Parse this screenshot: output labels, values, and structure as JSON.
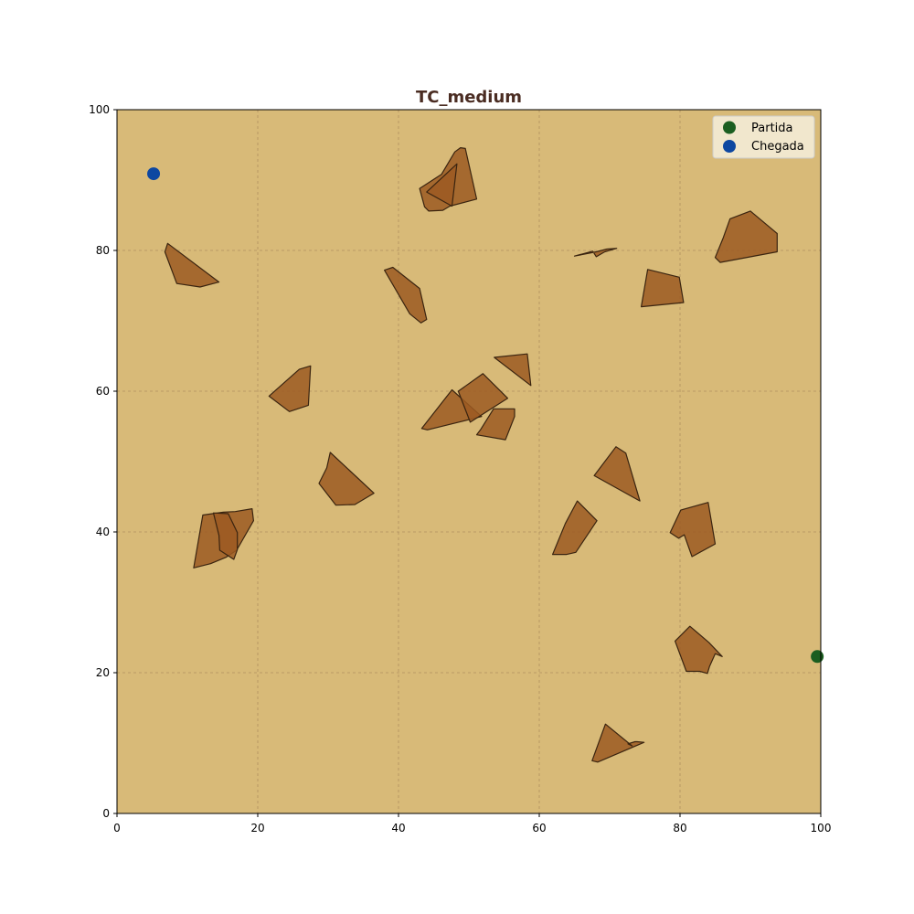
{
  "chart_data": {
    "type": "scatter",
    "title": "TC_medium",
    "xlabel": "",
    "ylabel": "",
    "xlim": [
      0,
      100
    ],
    "ylim": [
      0,
      100
    ],
    "xticks": [
      "0",
      "20",
      "40",
      "60",
      "80",
      "100"
    ],
    "yticks": [
      "0",
      "20",
      "40",
      "60",
      "80",
      "100"
    ],
    "grid": true,
    "legend_position": "top-right",
    "colors": {
      "background": "#d8ba78",
      "obstacle_fill": "#9c5a22",
      "obstacle_stroke": "#3a2410",
      "grid": "#b09060",
      "title": "#4a2c22"
    },
    "series": [
      {
        "name": "Partida",
        "color": "#1b5e20",
        "points": [
          [
            99.5,
            22.3
          ]
        ]
      },
      {
        "name": "Chegada",
        "color": "#0d47a1",
        "points": [
          [
            5.2,
            90.9
          ]
        ]
      }
    ],
    "obstacles": [
      [
        [
          7.2,
          81.0
        ],
        [
          6.8,
          79.8
        ],
        [
          8.5,
          75.3
        ],
        [
          11.8,
          74.8
        ],
        [
          14.5,
          75.5
        ]
      ],
      [
        [
          38.0,
          77.2
        ],
        [
          39.2,
          77.6
        ],
        [
          43.0,
          74.6
        ],
        [
          44.0,
          70.2
        ],
        [
          43.2,
          69.7
        ],
        [
          41.6,
          71.0
        ]
      ],
      [
        [
          43.0,
          88.8
        ],
        [
          46.1,
          90.8
        ],
        [
          48.0,
          94.0
        ],
        [
          48.8,
          94.6
        ],
        [
          49.5,
          94.5
        ],
        [
          51.1,
          87.3
        ],
        [
          47.3,
          86.3
        ],
        [
          46.3,
          85.7
        ],
        [
          44.3,
          85.6
        ],
        [
          43.7,
          86.2
        ]
      ],
      [
        [
          44.0,
          88.3
        ],
        [
          48.3,
          92.3
        ],
        [
          47.6,
          86.3
        ]
      ],
      [
        [
          65.0,
          79.2
        ],
        [
          67.6,
          79.9
        ],
        [
          68.1,
          79.1
        ],
        [
          69.3,
          79.8
        ],
        [
          71.0,
          80.3
        ],
        [
          69.6,
          80.2
        ],
        [
          68.1,
          79.8
        ]
      ],
      [
        [
          85.0,
          79.0
        ],
        [
          85.7,
          78.3
        ],
        [
          93.8,
          79.8
        ],
        [
          93.8,
          82.4
        ],
        [
          90.0,
          85.6
        ],
        [
          87.1,
          84.5
        ],
        [
          86.1,
          81.7
        ]
      ],
      [
        [
          75.4,
          77.3
        ],
        [
          74.5,
          72.0
        ],
        [
          80.5,
          72.6
        ],
        [
          79.9,
          76.2
        ]
      ],
      [
        [
          21.6,
          59.3
        ],
        [
          24.5,
          57.1
        ],
        [
          27.2,
          58.0
        ],
        [
          27.5,
          63.6
        ],
        [
          25.9,
          63.1
        ]
      ],
      [
        [
          43.3,
          54.7
        ],
        [
          44.1,
          54.5
        ],
        [
          51.8,
          56.4
        ],
        [
          47.6,
          60.2
        ]
      ],
      [
        [
          48.5,
          60.0
        ],
        [
          52.0,
          62.5
        ],
        [
          55.5,
          59.0
        ],
        [
          50.2,
          55.6
        ]
      ],
      [
        [
          53.5,
          57.5
        ],
        [
          56.5,
          57.5
        ],
        [
          56.5,
          56.4
        ],
        [
          55.2,
          53.1
        ],
        [
          51.1,
          53.8
        ],
        [
          51.7,
          54.6
        ]
      ],
      [
        [
          53.6,
          64.8
        ],
        [
          58.3,
          65.3
        ],
        [
          58.8,
          60.8
        ]
      ],
      [
        [
          28.7,
          46.9
        ],
        [
          29.8,
          49.1
        ],
        [
          30.3,
          51.3
        ],
        [
          36.5,
          45.5
        ],
        [
          33.8,
          43.9
        ],
        [
          31.1,
          43.8
        ]
      ],
      [
        [
          10.9,
          34.9
        ],
        [
          13.3,
          35.5
        ],
        [
          15.5,
          36.4
        ],
        [
          17.0,
          37.4
        ],
        [
          19.4,
          41.6
        ],
        [
          19.2,
          43.3
        ],
        [
          16.8,
          42.9
        ],
        [
          15.1,
          42.8
        ],
        [
          12.2,
          42.4
        ]
      ],
      [
        [
          13.7,
          42.7
        ],
        [
          14.5,
          39.5
        ],
        [
          14.6,
          37.4
        ],
        [
          16.6,
          36.1
        ],
        [
          17.1,
          37.5
        ],
        [
          17.1,
          39.9
        ],
        [
          15.8,
          42.6
        ]
      ],
      [
        [
          61.9,
          36.8
        ],
        [
          63.7,
          41.2
        ],
        [
          65.4,
          44.4
        ],
        [
          68.2,
          41.6
        ],
        [
          65.2,
          37.1
        ],
        [
          63.9,
          36.8
        ]
      ],
      [
        [
          67.8,
          48.0
        ],
        [
          70.9,
          52.1
        ],
        [
          72.3,
          51.2
        ],
        [
          74.3,
          44.4
        ]
      ],
      [
        [
          78.6,
          39.9
        ],
        [
          80.1,
          43.1
        ],
        [
          84.0,
          44.2
        ],
        [
          85.0,
          38.3
        ],
        [
          81.7,
          36.5
        ],
        [
          80.6,
          39.6
        ],
        [
          79.8,
          39.1
        ]
      ],
      [
        [
          79.3,
          24.5
        ],
        [
          81.4,
          26.6
        ],
        [
          84.1,
          24.3
        ],
        [
          86.0,
          22.3
        ],
        [
          85.0,
          22.7
        ],
        [
          84.2,
          20.9
        ],
        [
          83.9,
          19.9
        ],
        [
          82.8,
          20.2
        ],
        [
          80.9,
          20.2
        ]
      ],
      [
        [
          67.5,
          7.5
        ],
        [
          68.3,
          7.3
        ],
        [
          74.9,
          10.1
        ],
        [
          73.9,
          10.2
        ],
        [
          73.6,
          10.2
        ],
        [
          72.6,
          9.9
        ],
        [
          73.2,
          9.6
        ],
        [
          69.4,
          12.7
        ]
      ]
    ]
  }
}
